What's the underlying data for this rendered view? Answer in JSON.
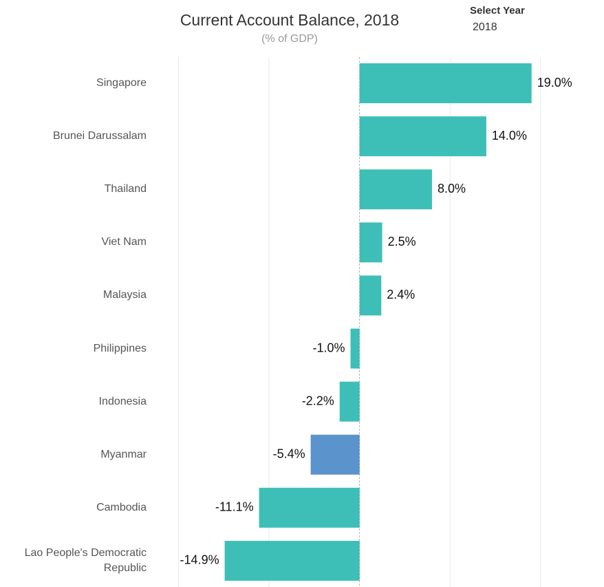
{
  "chart_data": {
    "type": "bar",
    "orientation": "horizontal",
    "title": "Current Account Balance, 2018",
    "subtitle": "(% of GDP)",
    "filter_label": "Select Year",
    "filter_value": "2018",
    "categories": [
      "Singapore",
      "Brunei Darussalam",
      "Thailand",
      "Viet Nam",
      "Malaysia",
      "Philippines",
      "Indonesia",
      "Myanmar",
      "Cambodia",
      "Lao People's Democratic Republic"
    ],
    "values": [
      19.0,
      14.0,
      8.0,
      2.5,
      2.4,
      -1.0,
      -2.2,
      -5.4,
      -11.1,
      -14.9
    ],
    "value_labels": [
      "19.0%",
      "14.0%",
      "8.0%",
      "2.5%",
      "2.4%",
      "-1.0%",
      "-2.2%",
      "-5.4%",
      "-11.1%",
      "-14.9%"
    ],
    "colors": [
      "#3dbfb8",
      "#3dbfb8",
      "#3dbfb8",
      "#3dbfb8",
      "#3dbfb8",
      "#3dbfb8",
      "#3dbfb8",
      "#5b93cc",
      "#3dbfb8",
      "#3dbfb8"
    ],
    "xlim": [
      -23,
      27
    ],
    "xticks": [
      -20,
      -10,
      0,
      10,
      20
    ],
    "grid": true
  }
}
